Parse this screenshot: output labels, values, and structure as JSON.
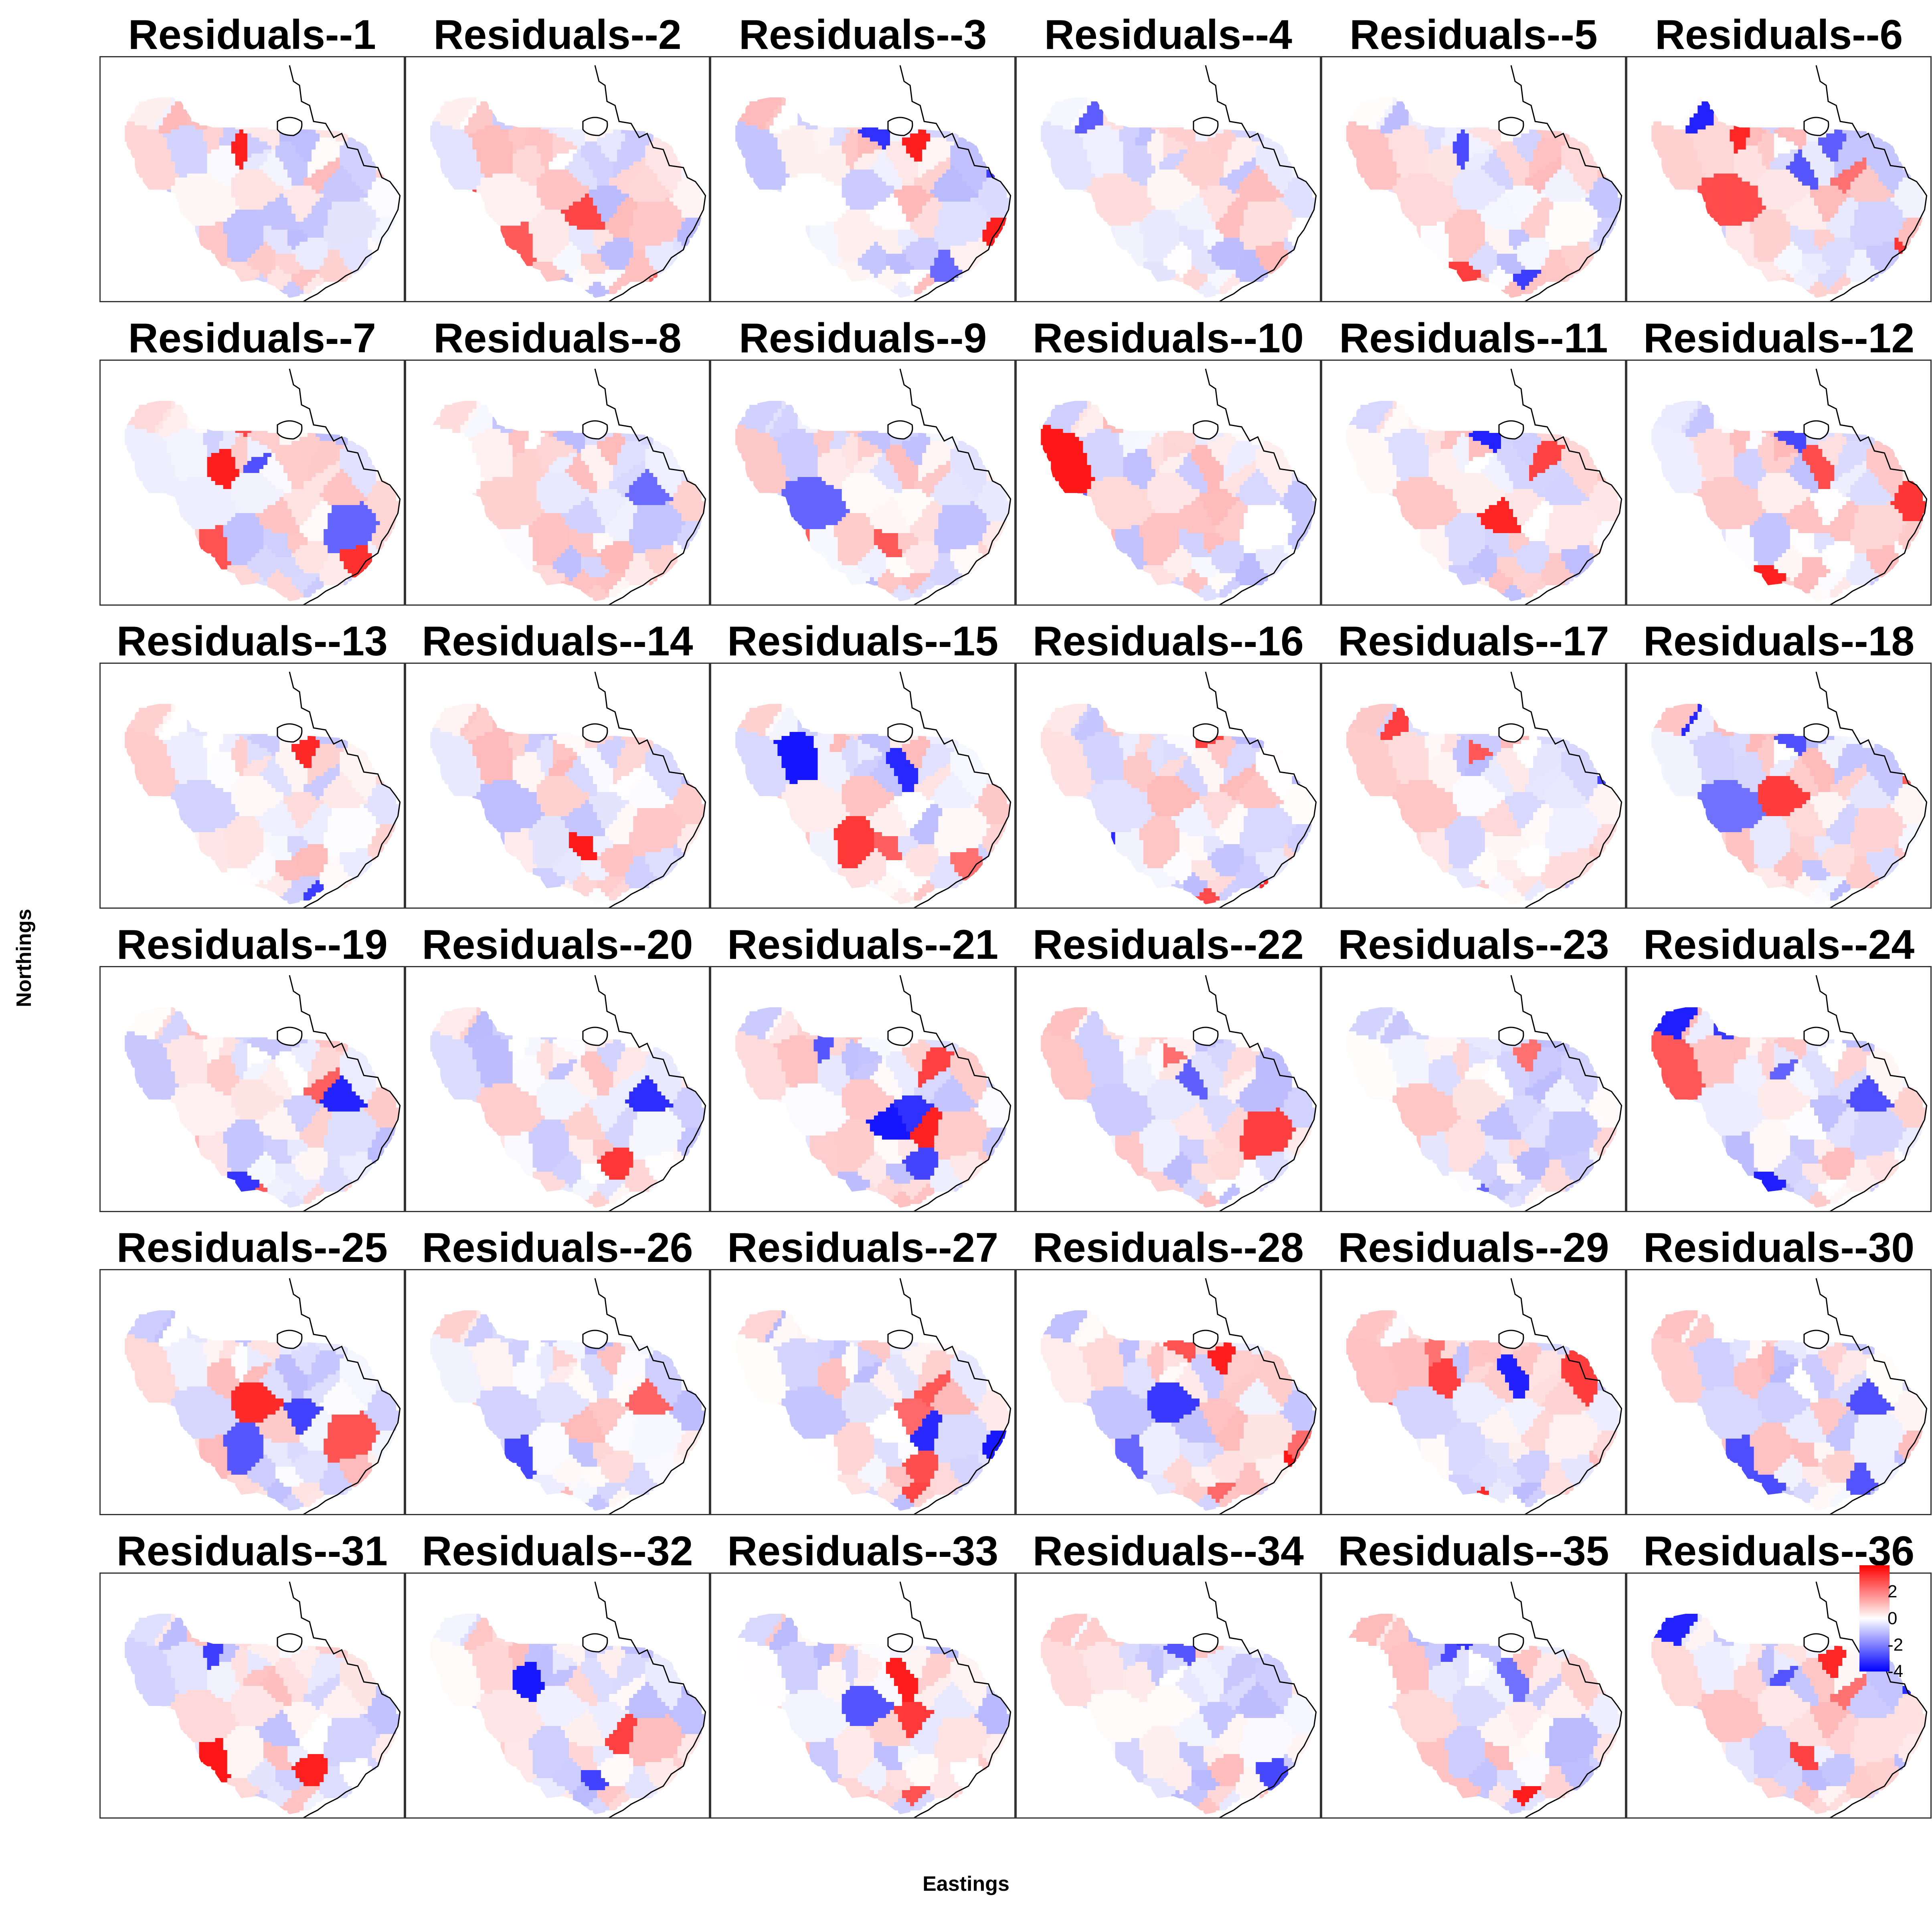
{
  "figure": {
    "xlabel": "Eastings",
    "ylabel": "Northings"
  },
  "panels": [
    {
      "title": "Residuals--1"
    },
    {
      "title": "Residuals--2"
    },
    {
      "title": "Residuals--3"
    },
    {
      "title": "Residuals--4"
    },
    {
      "title": "Residuals--5"
    },
    {
      "title": "Residuals--6"
    },
    {
      "title": "Residuals--7"
    },
    {
      "title": "Residuals--8"
    },
    {
      "title": "Residuals--9"
    },
    {
      "title": "Residuals--10"
    },
    {
      "title": "Residuals--11"
    },
    {
      "title": "Residuals--12"
    },
    {
      "title": "Residuals--13"
    },
    {
      "title": "Residuals--14"
    },
    {
      "title": "Residuals--15"
    },
    {
      "title": "Residuals--16"
    },
    {
      "title": "Residuals--17"
    },
    {
      "title": "Residuals--18"
    },
    {
      "title": "Residuals--19"
    },
    {
      "title": "Residuals--20"
    },
    {
      "title": "Residuals--21"
    },
    {
      "title": "Residuals--22"
    },
    {
      "title": "Residuals--23"
    },
    {
      "title": "Residuals--24"
    },
    {
      "title": "Residuals--25"
    },
    {
      "title": "Residuals--26"
    },
    {
      "title": "Residuals--27"
    },
    {
      "title": "Residuals--28"
    },
    {
      "title": "Residuals--29"
    },
    {
      "title": "Residuals--30"
    },
    {
      "title": "Residuals--31"
    },
    {
      "title": "Residuals--32"
    },
    {
      "title": "Residuals--33"
    },
    {
      "title": "Residuals--34"
    },
    {
      "title": "Residuals--35"
    },
    {
      "title": "Residuals--36"
    }
  ],
  "legend": {
    "ticks": [
      "2",
      "0",
      "-2",
      "-4"
    ],
    "tick_values": [
      2,
      0,
      -2,
      -4
    ],
    "range": [
      -4,
      4
    ],
    "colors": {
      "low": "#0000ff",
      "mid": "#ffffff",
      "high": "#ff0000"
    }
  }
}
